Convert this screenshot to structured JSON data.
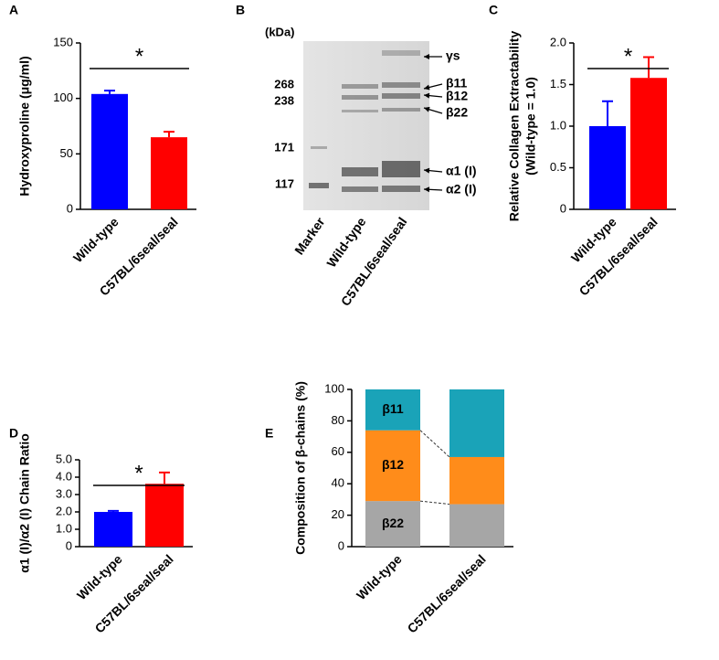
{
  "chart_data": [
    {
      "type": "bar",
      "panel": "A",
      "ylabel": [
        "Hydroxyproline (μg/ml)"
      ],
      "categories": [
        "Wild-type",
        "C57BL/6seal/seal"
      ],
      "values": [
        104,
        65
      ],
      "errors": [
        3,
        5
      ],
      "colors": [
        "#0000ff",
        "#ff0000"
      ],
      "ylim": [
        0,
        150
      ],
      "yticks": [
        0,
        50,
        100,
        150
      ],
      "significance": "*"
    },
    {
      "type": "bar",
      "panel": "C",
      "ylabel": [
        "Relative Collagen Extractability",
        "(Wild-type = 1.0)"
      ],
      "categories": [
        "Wild-type",
        "C57BL/6seal/seal"
      ],
      "values": [
        1.0,
        1.58
      ],
      "errors": [
        0.3,
        0.25
      ],
      "colors": [
        "#0000ff",
        "#ff0000"
      ],
      "ylim": [
        0,
        2.0
      ],
      "yticks": [
        0,
        0.5,
        {
          "value": 1.0,
          "label": "1.0"
        },
        1.5,
        {
          "value": 2.0,
          "label": "2.0"
        }
      ],
      "significance": "*"
    },
    {
      "type": "bar",
      "panel": "D",
      "ylabel": [
        "α1 (I)/α2 (I) Chain Ratio"
      ],
      "categories": [
        "Wild-type",
        "C57BL/6seal/seal"
      ],
      "values": [
        2.0,
        3.62
      ],
      "errors": [
        0.06,
        0.65
      ],
      "colors": [
        "#0000ff",
        "#ff0000"
      ],
      "ylim": [
        0,
        5.0
      ],
      "yticks": [
        0,
        {
          "value": 1.0,
          "label": "1.0"
        },
        {
          "value": 2.0,
          "label": "2.0"
        },
        {
          "value": 3.0,
          "label": "3.0"
        },
        {
          "value": 4.0,
          "label": "4.0"
        },
        {
          "value": 5.0,
          "label": "5.0"
        }
      ],
      "significance": "*"
    },
    {
      "type": "stacked-bar",
      "panel": "E",
      "ylabel": [
        "Composition of β-chains (%)"
      ],
      "categories": [
        "Wild-type",
        "C57BL/6seal/seal"
      ],
      "series": [
        {
          "name": "β22",
          "color": "#a6a6a6",
          "values": [
            29,
            27
          ]
        },
        {
          "name": "β12",
          "color": "#ff8c1a",
          "values": [
            45,
            30
          ]
        },
        {
          "name": "β11",
          "color": "#1aa3b8",
          "values": [
            26,
            43
          ]
        }
      ],
      "ylim": [
        0,
        100
      ],
      "yticks": [
        0,
        20,
        40,
        60,
        80,
        100
      ]
    }
  ],
  "gel": {
    "panel": "B",
    "unit": "(kDa)",
    "markers": [
      "268",
      "238",
      "171",
      "117"
    ],
    "bands": [
      "γs",
      "β11",
      "β12",
      "β22",
      "α1 (I)",
      "α2 (I)"
    ],
    "lanes": [
      "Marker",
      "Wild-type",
      "C57BL/6seal/seal"
    ]
  }
}
